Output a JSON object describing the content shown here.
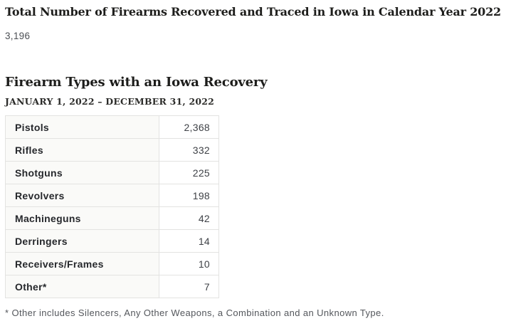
{
  "header": {
    "title": "Total Number of Firearms Recovered and Traced in Iowa in Calendar Year 2022",
    "total_count": "3,196"
  },
  "section": {
    "heading": "Firearm Types with an Iowa Recovery",
    "date_range": "JANUARY 1, 2022 – DECEMBER 31, 2022"
  },
  "table": {
    "rows": [
      {
        "label": "Pistols",
        "value": "2,368"
      },
      {
        "label": "Rifles",
        "value": "332"
      },
      {
        "label": "Shotguns",
        "value": "225"
      },
      {
        "label": "Revolvers",
        "value": "198"
      },
      {
        "label": "Machineguns",
        "value": "42"
      },
      {
        "label": "Derringers",
        "value": "14"
      },
      {
        "label": "Receivers/Frames",
        "value": "10"
      },
      {
        "label": "Other*",
        "value": "7"
      }
    ]
  },
  "footnote": "* Other includes Silencers, Any Other Weapons, a Combination and an Unknown Type.",
  "colors": {
    "heading_text": "#1d1d1b",
    "muted_text": "#54575c",
    "row_label_bg": "#fafaf8",
    "table_border": "#e3e3e1"
  }
}
